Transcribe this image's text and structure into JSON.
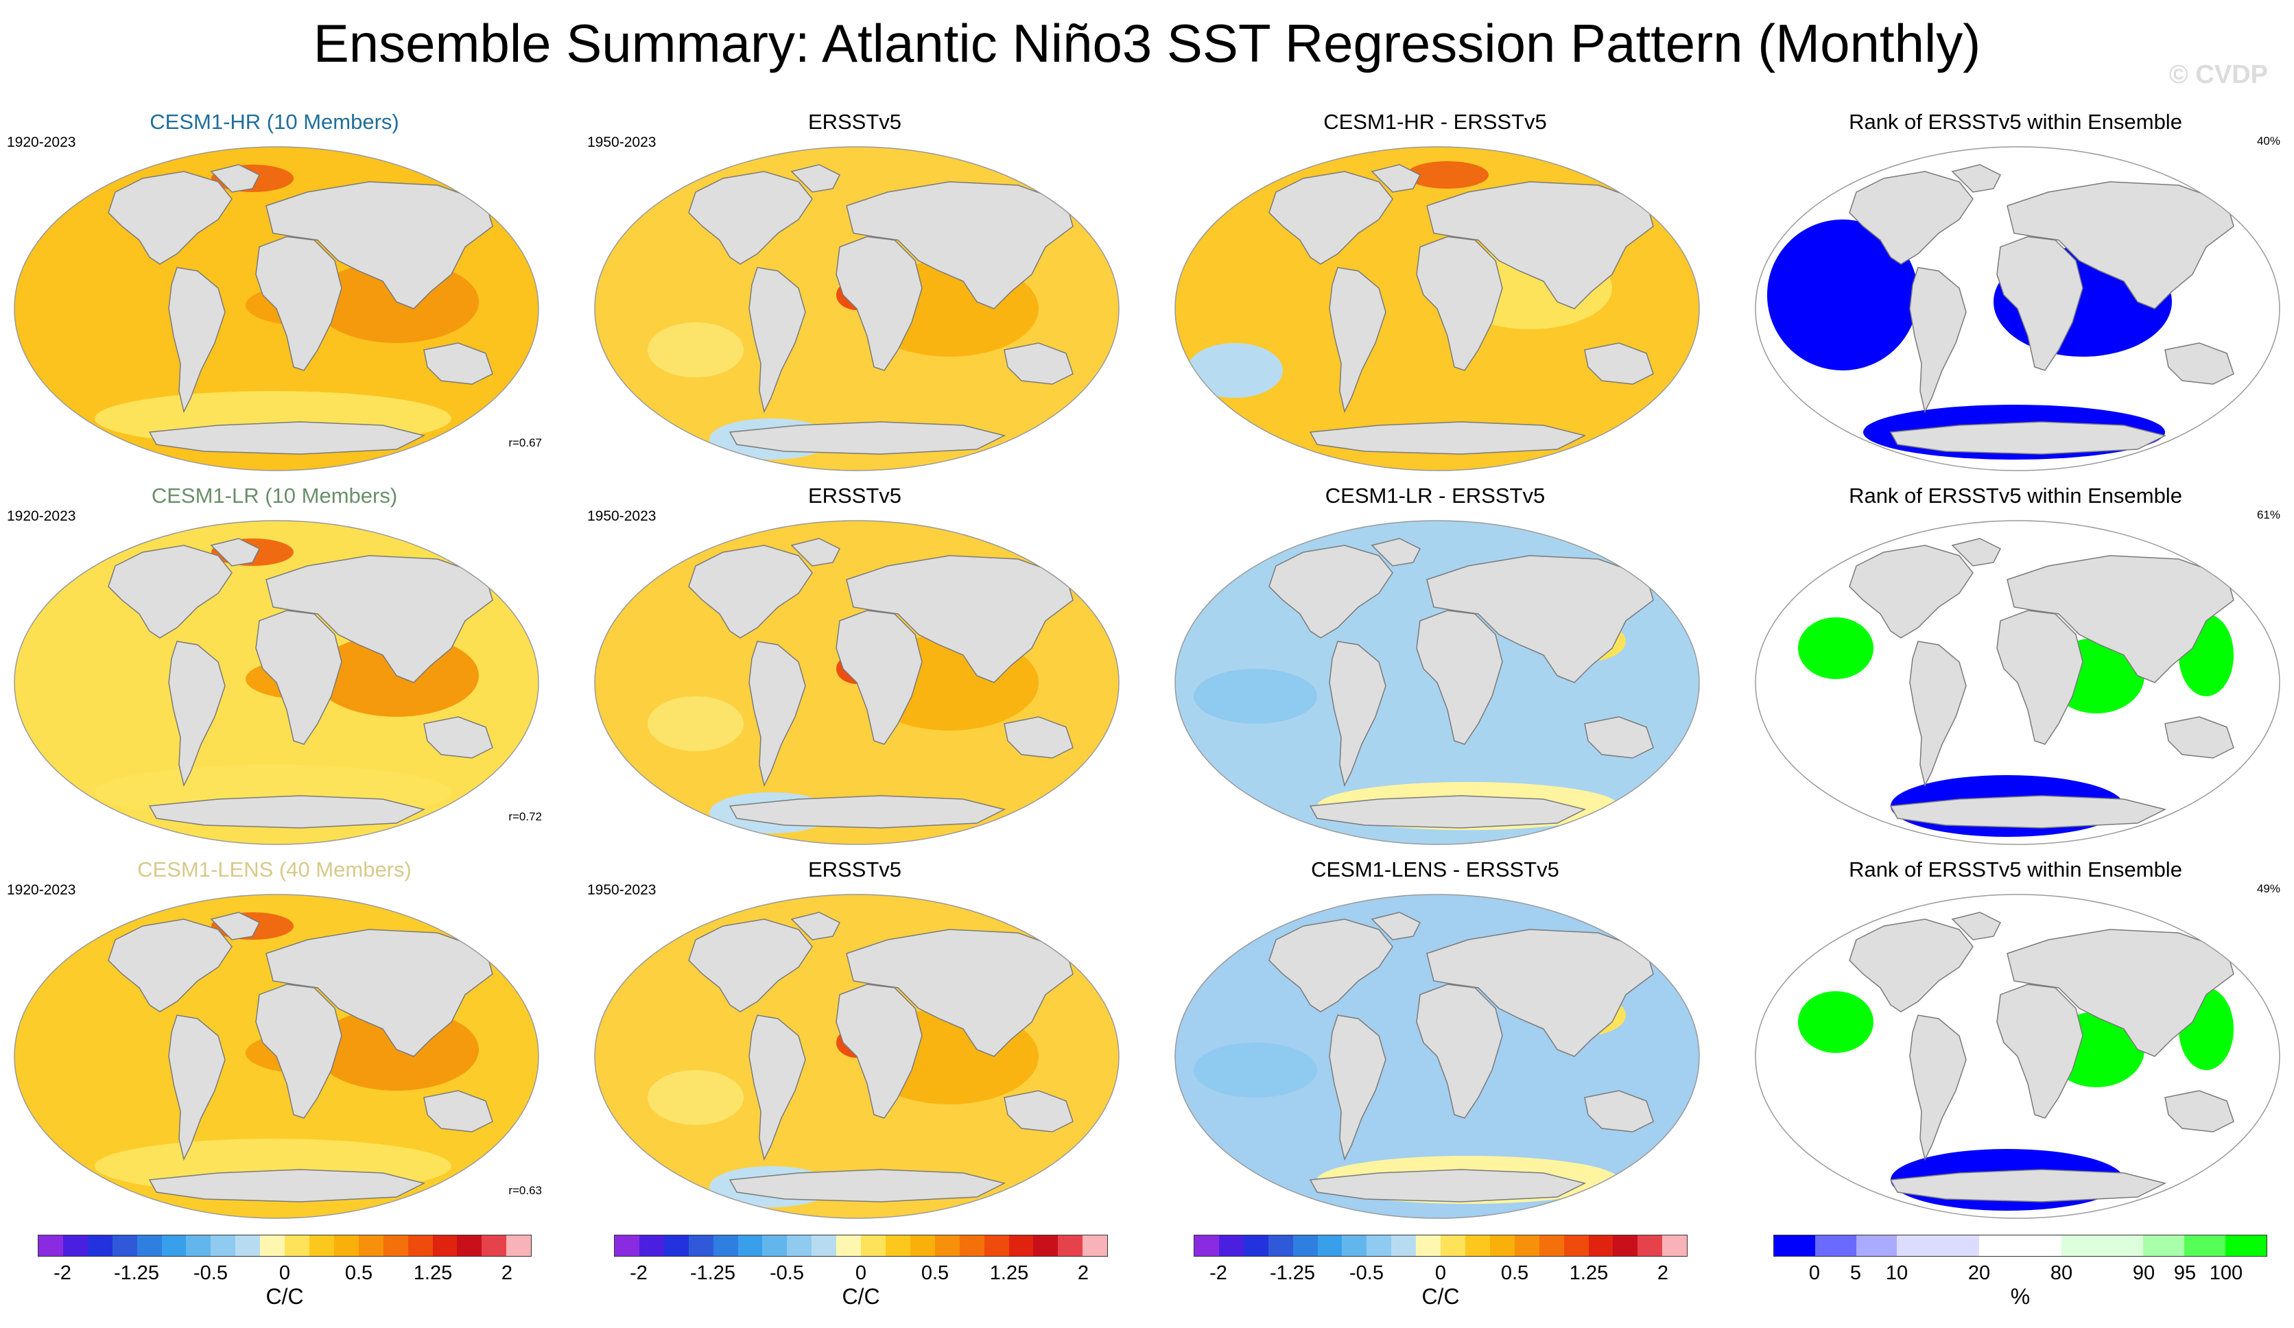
{
  "header": {
    "title": "Ensemble Summary: Atlantic Niño3 SST Regression Pattern (Monthly)",
    "watermark": "© CVDP"
  },
  "rows": [
    {
      "ensemble": {
        "title": "CESM1-HR (10 Members)",
        "title_color": "#1f6e99",
        "period": "1920-2023",
        "r": "r=0.67"
      },
      "obs": {
        "title": "ERSSTv5",
        "period": "1950-2023"
      },
      "diff": {
        "title": "CESM1-HR - ERSSTv5"
      },
      "rank": {
        "title": "Rank of ERSSTv5 within Ensemble",
        "pct": "40%"
      }
    },
    {
      "ensemble": {
        "title": "CESM1-LR (10 Members)",
        "title_color": "#6a8f6a",
        "period": "1920-2023",
        "r": "r=0.72"
      },
      "obs": {
        "title": "ERSSTv5",
        "period": "1950-2023"
      },
      "diff": {
        "title": "CESM1-LR - ERSSTv5"
      },
      "rank": {
        "title": "Rank of ERSSTv5 within Ensemble",
        "pct": "61%"
      }
    },
    {
      "ensemble": {
        "title": "CESM1-LENS (40 Members)",
        "title_color": "#d8c98a",
        "period": "1920-2023",
        "r": "r=0.63"
      },
      "obs": {
        "title": "ERSSTv5",
        "period": "1950-2023"
      },
      "diff": {
        "title": "CESM1-LENS - ERSSTv5"
      },
      "rank": {
        "title": "Rank of ERSSTv5 within Ensemble",
        "pct": "49%"
      }
    }
  ],
  "colorbars": {
    "sst": {
      "unit": "C/C",
      "ticks": [
        "-2",
        "-1.25",
        "-0.5",
        "0",
        "0.5",
        "1.25",
        "2"
      ],
      "tick_slots": [
        1,
        4,
        7,
        10,
        13,
        16,
        19
      ],
      "slots": 20,
      "colors": [
        "#8a2be2",
        "#4b1fe0",
        "#2233dd",
        "#2f59d9",
        "#2f7fe0",
        "#38a0ea",
        "#63b6ec",
        "#8fcaf0",
        "#b7dcf2",
        "#fff7b0",
        "#fde25a",
        "#fcc81e",
        "#f9b00a",
        "#f7900a",
        "#f4700a",
        "#ef4b0c",
        "#e0230f",
        "#c8101a",
        "#e5424c",
        "#f7b3b8"
      ]
    },
    "rank": {
      "unit": "%",
      "ticks": [
        "0",
        "5",
        "10",
        "20",
        "80",
        "90",
        "95",
        "100"
      ],
      "tick_slots": [
        1,
        2,
        3,
        5,
        7,
        9,
        10,
        11
      ],
      "slots": 12,
      "colors": [
        "#0000ff",
        "#6a6aff",
        "#aaaaff",
        "#dcdcff",
        "#dcdcff",
        "#ffffff",
        "#ffffff",
        "#dcffdc",
        "#dcffdc",
        "#aaffaa",
        "#55ff55",
        "#00ff00"
      ]
    }
  }
}
